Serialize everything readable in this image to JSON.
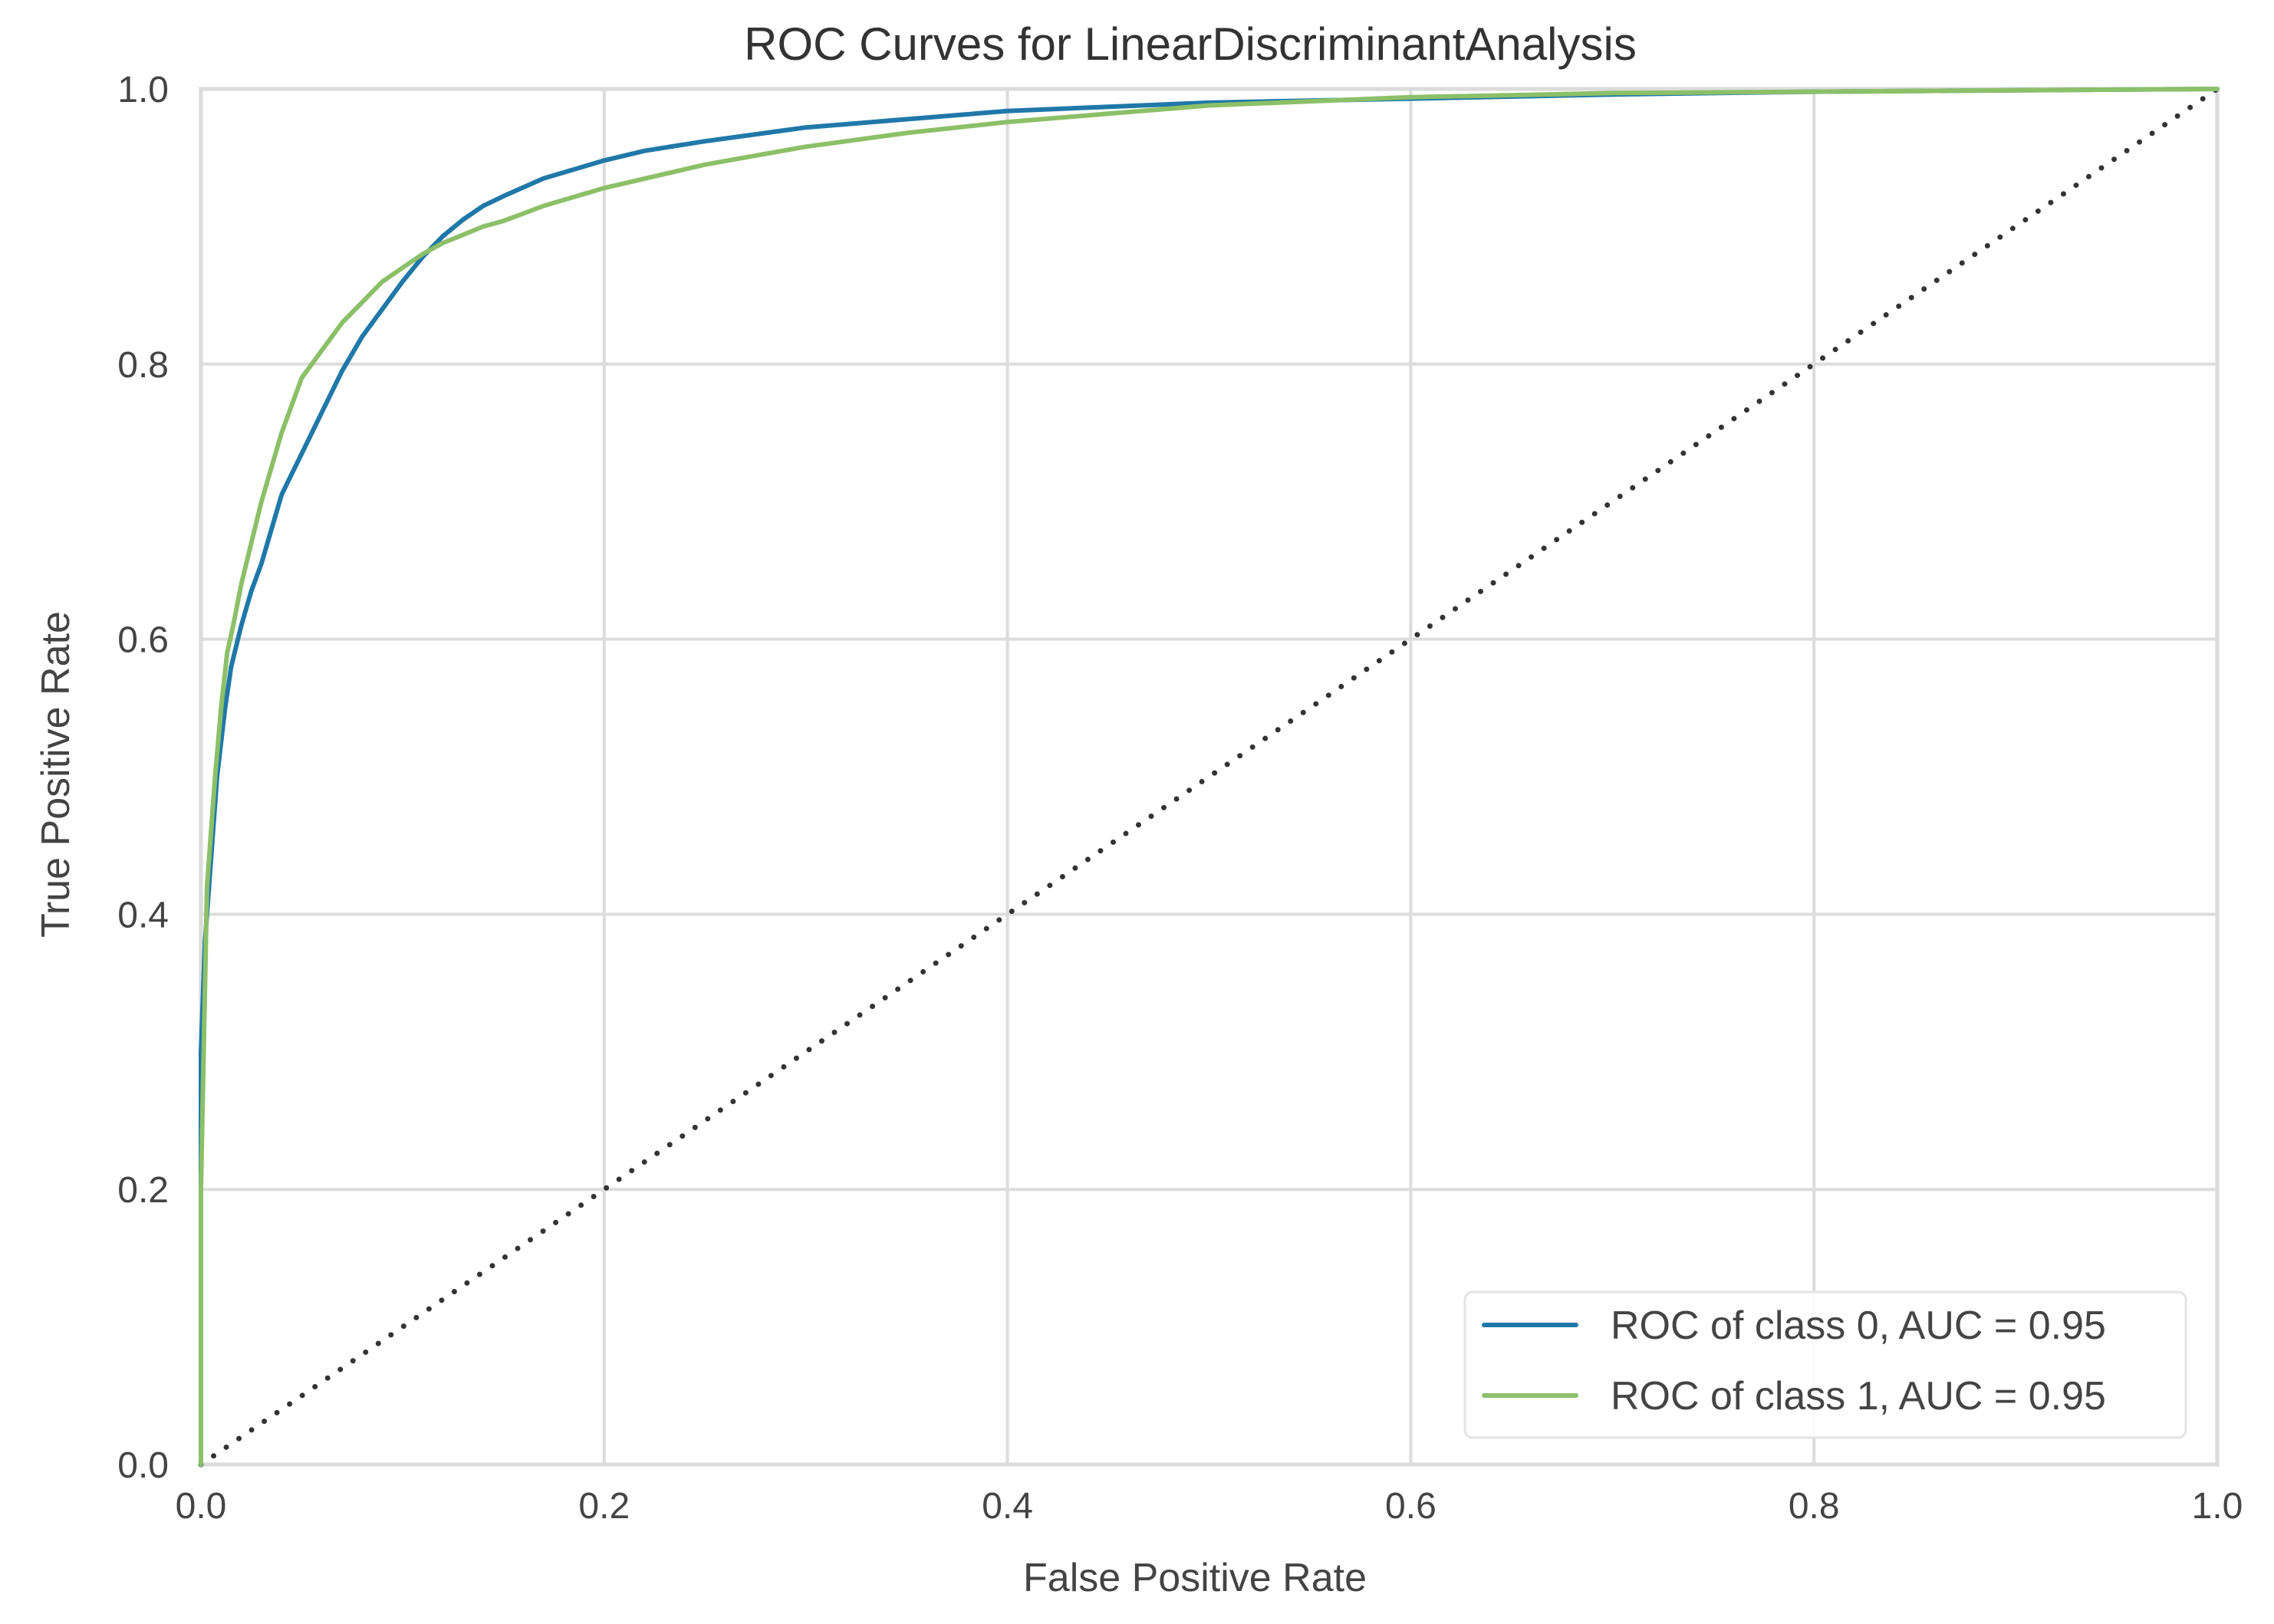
{
  "chart_data": {
    "type": "line",
    "title": "ROC Curves for LinearDiscriminantAnalysis",
    "xlabel": "False Positive Rate",
    "ylabel": "True Positive Rate",
    "xlim": [
      0.0,
      1.0
    ],
    "ylim": [
      0.0,
      1.0
    ],
    "grid": true,
    "legend_position": "lower-right",
    "xticks": [
      "0.0",
      "0.2",
      "0.4",
      "0.6",
      "0.8",
      "1.0"
    ],
    "yticks": [
      "0.0",
      "0.2",
      "0.4",
      "0.6",
      "0.8",
      "1.0"
    ],
    "series": [
      {
        "name": "ROC of class 0, AUC = 0.95",
        "color": "#1f78a8",
        "x": [
          0.0,
          0.0,
          0.002,
          0.005,
          0.008,
          0.012,
          0.015,
          0.02,
          0.025,
          0.03,
          0.035,
          0.04,
          0.045,
          0.05,
          0.06,
          0.07,
          0.08,
          0.09,
          0.1,
          0.11,
          0.12,
          0.13,
          0.14,
          0.15,
          0.17,
          0.2,
          0.22,
          0.25,
          0.3,
          0.35,
          0.4,
          0.5,
          0.6,
          0.7,
          0.8,
          0.9,
          1.0
        ],
        "y": [
          0.0,
          0.3,
          0.38,
          0.44,
          0.5,
          0.55,
          0.58,
          0.61,
          0.635,
          0.655,
          0.68,
          0.705,
          0.72,
          0.735,
          0.765,
          0.795,
          0.82,
          0.84,
          0.86,
          0.878,
          0.893,
          0.905,
          0.915,
          0.922,
          0.935,
          0.948,
          0.955,
          0.962,
          0.972,
          0.978,
          0.984,
          0.99,
          0.993,
          0.996,
          0.998,
          0.999,
          1.0
        ]
      },
      {
        "name": "ROC of class 1, AUC = 0.95",
        "color": "#8cc068",
        "x": [
          0.0,
          0.0,
          0.003,
          0.007,
          0.01,
          0.013,
          0.016,
          0.02,
          0.025,
          0.03,
          0.035,
          0.04,
          0.045,
          0.05,
          0.06,
          0.07,
          0.08,
          0.09,
          0.1,
          0.11,
          0.12,
          0.13,
          0.14,
          0.15,
          0.17,
          0.2,
          0.25,
          0.3,
          0.35,
          0.4,
          0.45,
          0.5,
          0.6,
          0.7,
          0.8,
          0.9,
          1.0
        ],
        "y": [
          0.0,
          0.2,
          0.42,
          0.5,
          0.55,
          0.59,
          0.61,
          0.64,
          0.67,
          0.7,
          0.725,
          0.75,
          0.77,
          0.79,
          0.81,
          0.83,
          0.845,
          0.86,
          0.87,
          0.88,
          0.888,
          0.894,
          0.9,
          0.904,
          0.915,
          0.928,
          0.945,
          0.958,
          0.968,
          0.976,
          0.982,
          0.988,
          0.994,
          0.997,
          0.998,
          0.999,
          1.0
        ]
      }
    ],
    "reference_line": {
      "name": "random",
      "x": [
        0.0,
        1.0
      ],
      "y": [
        0.0,
        1.0
      ],
      "style": "dotted",
      "color": "#333333"
    }
  }
}
